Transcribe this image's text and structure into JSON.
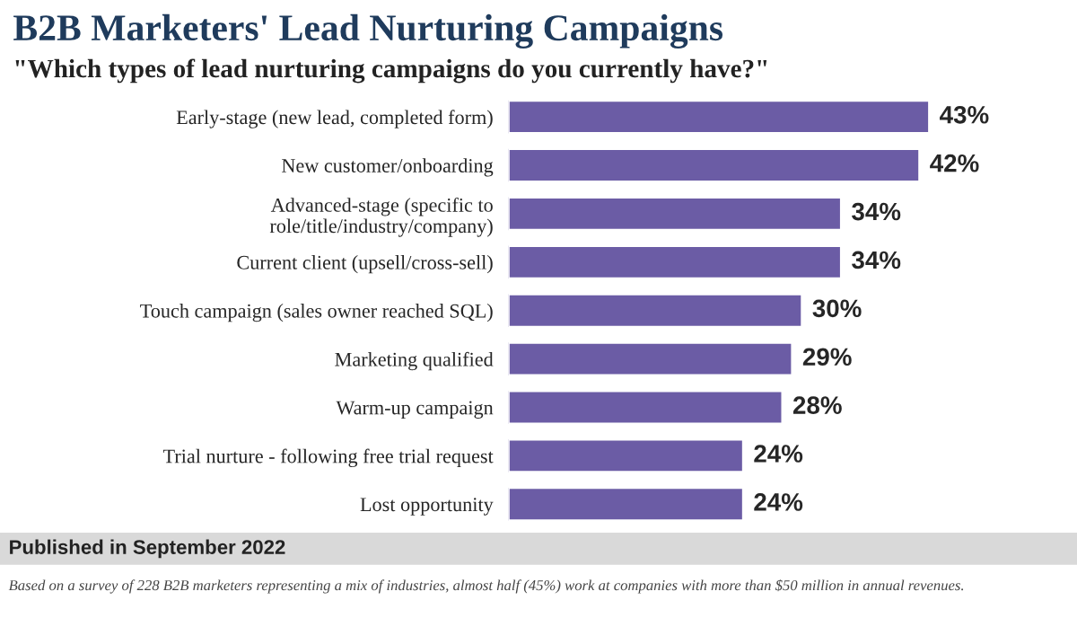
{
  "chart_data": {
    "type": "bar",
    "orientation": "horizontal",
    "title": "B2B Marketers' Lead Nurturing Campaigns",
    "subtitle": "\"Which types of lead nurturing campaigns do you currently have?\"",
    "categories": [
      "Early-stage (new lead, completed form)",
      "New customer/onboarding",
      "Advanced-stage (specific to\nrole/title/industry/company)",
      "Current client (upsell/cross-sell)",
      "Touch campaign (sales owner reached SQL)",
      "Marketing qualified",
      "Warm-up campaign",
      "Trial nurture - following free trial request",
      "Lost opportunity"
    ],
    "values": [
      43,
      42,
      34,
      34,
      30,
      29,
      28,
      24,
      24
    ],
    "value_labels": [
      "43%",
      "42%",
      "34%",
      "34%",
      "30%",
      "29%",
      "28%",
      "24%",
      "24%"
    ],
    "color": "#6b5ca5",
    "annotations": [
      "Published in September 2022",
      "Based on a survey of 228 B2B marketers representing a mix of industries, almost half (45%) work at companies with more than $50 million in annual revenues."
    ]
  }
}
